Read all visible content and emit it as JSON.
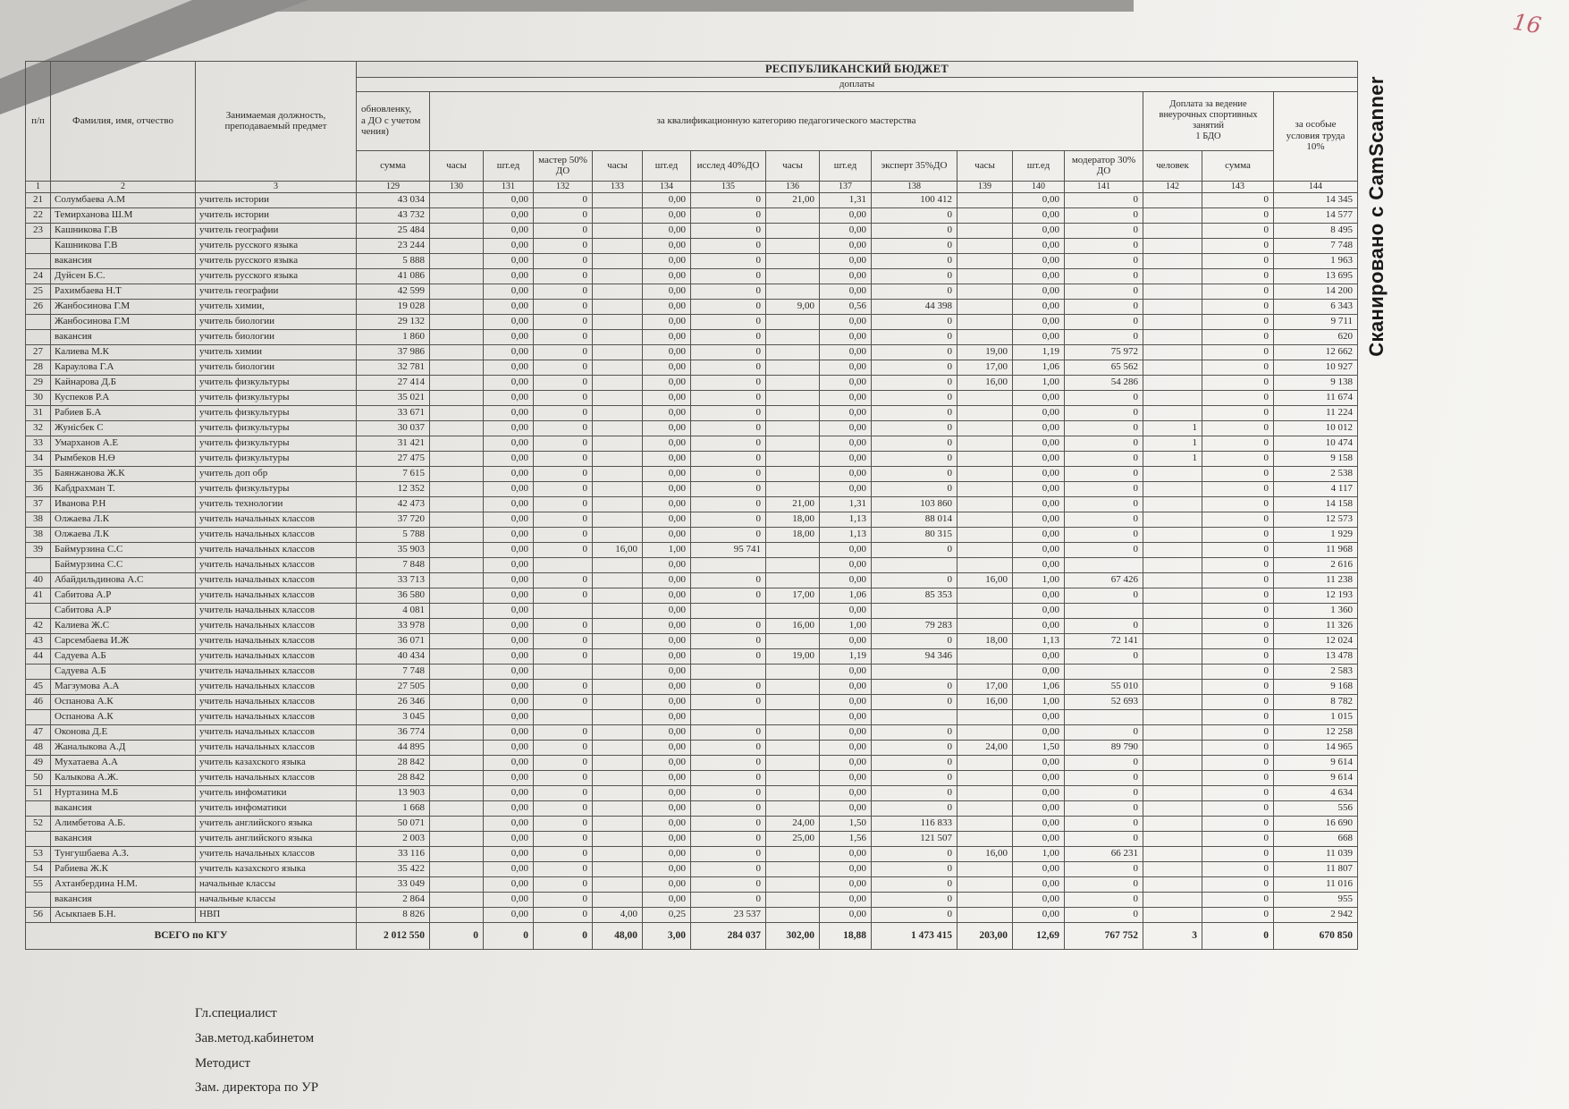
{
  "page": {
    "handwritten_number": "16",
    "scan_watermark": "Сканировано с CamScanner",
    "colors": {
      "handwriting": "#c2606e",
      "paper": "#edebe8",
      "ink": "#2a2927"
    }
  },
  "table": {
    "banner": "РЕСПУБЛИКАНСКИЙ БЮДЖЕТ",
    "banner_sub": "доплаты",
    "headers": {
      "num": "п/п",
      "name": "Фамилия, имя, отчество",
      "position": "Занимаемая должность, преподаваемый предмет",
      "col129_group": "обновленку,\nа ДО с учетом\nчения)",
      "qual_group": "за квалификационную категорию педагогического мастерства",
      "sport_group": "Доплата  за ведение\nвнеурочных спортивных\nзанятий\n1 БДО",
      "special_group": "за особые условия труда 10%",
      "sub": [
        "сумма",
        "часы",
        "шт.ед",
        "мастер 50% ДО",
        "часы",
        "шт.ед",
        "исслед 40%ДО",
        "часы",
        "шт.ед",
        "эксперт 35%ДО",
        "часы",
        "шт.ед",
        "модератор 30% ДО",
        "человек",
        "сумма"
      ],
      "numbers": [
        "1",
        "2",
        "3",
        "129",
        "130",
        "131",
        "132",
        "133",
        "134",
        "135",
        "136",
        "137",
        "138",
        "139",
        "140",
        "141",
        "142",
        "143",
        "144"
      ]
    },
    "rows": [
      [
        "21",
        "Солумбаева А.М",
        "учитель истории",
        "43 034",
        "",
        "0,00",
        "0",
        "",
        "0,00",
        "0",
        "21,00",
        "1,31",
        "100 412",
        "",
        "0,00",
        "0",
        "",
        "0",
        "14 345"
      ],
      [
        "22",
        "Темирханова Ш.М",
        "учитель истории",
        "43 732",
        "",
        "0,00",
        "0",
        "",
        "0,00",
        "0",
        "",
        "0,00",
        "0",
        "",
        "0,00",
        "0",
        "",
        "0",
        "14 577"
      ],
      [
        "23",
        "Кашникова Г.В",
        "учитель географии",
        "25 484",
        "",
        "0,00",
        "0",
        "",
        "0,00",
        "0",
        "",
        "0,00",
        "0",
        "",
        "0,00",
        "0",
        "",
        "0",
        "8 495"
      ],
      [
        "",
        "Кашникова Г.В",
        "учитель русского языка",
        "23 244",
        "",
        "0,00",
        "0",
        "",
        "0,00",
        "0",
        "",
        "0,00",
        "0",
        "",
        "0,00",
        "0",
        "",
        "0",
        "7 748"
      ],
      [
        "",
        "вакансия",
        "учитель русского языка",
        "5 888",
        "",
        "0,00",
        "0",
        "",
        "0,00",
        "0",
        "",
        "0,00",
        "0",
        "",
        "0,00",
        "0",
        "",
        "0",
        "1 963"
      ],
      [
        "24",
        "Дуйсен Б.С.",
        "учитель русского языка",
        "41 086",
        "",
        "0,00",
        "0",
        "",
        "0,00",
        "0",
        "",
        "0,00",
        "0",
        "",
        "0,00",
        "0",
        "",
        "0",
        "13 695"
      ],
      [
        "25",
        "Рахимбаева Н.Т",
        "учитель географии",
        "42 599",
        "",
        "0,00",
        "0",
        "",
        "0,00",
        "0",
        "",
        "0,00",
        "0",
        "",
        "0,00",
        "0",
        "",
        "0",
        "14 200"
      ],
      [
        "26",
        "Жанбосинова Г.М",
        "учитель химии,",
        "19 028",
        "",
        "0,00",
        "0",
        "",
        "0,00",
        "0",
        "9,00",
        "0,56",
        "44 398",
        "",
        "0,00",
        "0",
        "",
        "0",
        "6 343"
      ],
      [
        "",
        "Жанбосинова Г.М",
        "учитель  биологии",
        "29 132",
        "",
        "0,00",
        "0",
        "",
        "0,00",
        "0",
        "",
        "0,00",
        "0",
        "",
        "0,00",
        "0",
        "",
        "0",
        "9 711"
      ],
      [
        "",
        "вакансия",
        "учитель  биологии",
        "1 860",
        "",
        "0,00",
        "0",
        "",
        "0,00",
        "0",
        "",
        "0,00",
        "0",
        "",
        "0,00",
        "0",
        "",
        "0",
        "620"
      ],
      [
        "27",
        "Калиева М.К",
        "учитель химии",
        "37 986",
        "",
        "0,00",
        "0",
        "",
        "0,00",
        "0",
        "",
        "0,00",
        "0",
        "19,00",
        "1,19",
        "75 972",
        "",
        "0",
        "12 662"
      ],
      [
        "28",
        "Караулова Г.А",
        "учитель биологии",
        "32 781",
        "",
        "0,00",
        "0",
        "",
        "0,00",
        "0",
        "",
        "0,00",
        "0",
        "17,00",
        "1,06",
        "65 562",
        "",
        "0",
        "10 927"
      ],
      [
        "29",
        "Кайнарова Д.Б",
        "учитель физкультуры",
        "27 414",
        "",
        "0,00",
        "0",
        "",
        "0,00",
        "0",
        "",
        "0,00",
        "0",
        "16,00",
        "1,00",
        "54 286",
        "",
        "0",
        "9 138"
      ],
      [
        "30",
        "Куспеков Р.А",
        "учитель физкультуры",
        "35 021",
        "",
        "0,00",
        "0",
        "",
        "0,00",
        "0",
        "",
        "0,00",
        "0",
        "",
        "0,00",
        "0",
        "",
        "0",
        "11 674"
      ],
      [
        "31",
        "Рабиев Б.А",
        "учитель физкультуры",
        "33 671",
        "",
        "0,00",
        "0",
        "",
        "0,00",
        "0",
        "",
        "0,00",
        "0",
        "",
        "0,00",
        "0",
        "",
        "0",
        "11 224"
      ],
      [
        "32",
        "Жунісбек С",
        "учитель физкультуры",
        "30 037",
        "",
        "0,00",
        "0",
        "",
        "0,00",
        "0",
        "",
        "0,00",
        "0",
        "",
        "0,00",
        "0",
        "1",
        "0",
        "10 012"
      ],
      [
        "33",
        "Умарханов А.Е",
        "учитель физкультуры",
        "31 421",
        "",
        "0,00",
        "0",
        "",
        "0,00",
        "0",
        "",
        "0,00",
        "0",
        "",
        "0,00",
        "0",
        "1",
        "0",
        "10 474"
      ],
      [
        "34",
        "Рымбеков Н.Ө",
        "учитель физкультуры",
        "27 475",
        "",
        "0,00",
        "0",
        "",
        "0,00",
        "0",
        "",
        "0,00",
        "0",
        "",
        "0,00",
        "0",
        "1",
        "0",
        "9 158"
      ],
      [
        "35",
        "Баянжанова Ж.К",
        "учитель  доп обр",
        "7 615",
        "",
        "0,00",
        "0",
        "",
        "0,00",
        "0",
        "",
        "0,00",
        "0",
        "",
        "0,00",
        "0",
        "",
        "0",
        "2 538"
      ],
      [
        "36",
        "Кабдрахман Т.",
        "учитель физкультуры",
        "12 352",
        "",
        "0,00",
        "0",
        "",
        "0,00",
        "0",
        "",
        "0,00",
        "0",
        "",
        "0,00",
        "0",
        "",
        "0",
        "4 117"
      ],
      [
        "37",
        "Иванова Р.Н",
        "учитель технологии",
        "42 473",
        "",
        "0,00",
        "0",
        "",
        "0,00",
        "0",
        "21,00",
        "1,31",
        "103 860",
        "",
        "0,00",
        "0",
        "",
        "0",
        "14 158"
      ],
      [
        "38",
        "Олжаева Л.К",
        "учитель начальных классов",
        "37 720",
        "",
        "0,00",
        "0",
        "",
        "0,00",
        "0",
        "18,00",
        "1,13",
        "88 014",
        "",
        "0,00",
        "0",
        "",
        "0",
        "12 573"
      ],
      [
        "38",
        "Олжаева Л.К",
        "учитель начальных классов",
        "5 788",
        "",
        "0,00",
        "0",
        "",
        "0,00",
        "0",
        "18,00",
        "1,13",
        "80 315",
        "",
        "0,00",
        "0",
        "",
        "0",
        "1 929"
      ],
      [
        "39",
        "Баймурзина С.С",
        "учитель начальных классов",
        "35 903",
        "",
        "0,00",
        "0",
        "16,00",
        "1,00",
        "95 741",
        "",
        "0,00",
        "0",
        "",
        "0,00",
        "0",
        "",
        "0",
        "11 968"
      ],
      [
        "",
        "Баймурзина С.С",
        "учитель начальных классов",
        "7 848",
        "",
        "0,00",
        "",
        "",
        "0,00",
        "",
        "",
        "0,00",
        "",
        "",
        "0,00",
        "",
        "",
        "0",
        "2 616"
      ],
      [
        "40",
        "Абайдильдинова А.С",
        "учитель начальных классов",
        "33 713",
        "",
        "0,00",
        "0",
        "",
        "0,00",
        "0",
        "",
        "0,00",
        "0",
        "16,00",
        "1,00",
        "67 426",
        "",
        "0",
        "11 238"
      ],
      [
        "41",
        "Сабитова А.Р",
        "учитель начальных классов",
        "36 580",
        "",
        "0,00",
        "0",
        "",
        "0,00",
        "0",
        "17,00",
        "1,06",
        "85 353",
        "",
        "0,00",
        "0",
        "",
        "0",
        "12 193"
      ],
      [
        "",
        "Сабитова А.Р",
        "учитель начальных классов",
        "4 081",
        "",
        "0,00",
        "",
        "",
        "0,00",
        "",
        "",
        "0,00",
        "",
        "",
        "0,00",
        "",
        "",
        "0",
        "1 360"
      ],
      [
        "42",
        "Калиева Ж.С",
        "учитель начальных классов",
        "33 978",
        "",
        "0,00",
        "0",
        "",
        "0,00",
        "0",
        "16,00",
        "1,00",
        "79 283",
        "",
        "0,00",
        "0",
        "",
        "0",
        "11 326"
      ],
      [
        "43",
        "Сарсембаева И.Ж",
        "учитель начальных классов",
        "36 071",
        "",
        "0,00",
        "0",
        "",
        "0,00",
        "0",
        "",
        "0,00",
        "0",
        "18,00",
        "1,13",
        "72 141",
        "",
        "0",
        "12 024"
      ],
      [
        "44",
        "Садуева А.Б",
        "учитель начальных классов",
        "40 434",
        "",
        "0,00",
        "0",
        "",
        "0,00",
        "0",
        "19,00",
        "1,19",
        "94 346",
        "",
        "0,00",
        "0",
        "",
        "0",
        "13 478"
      ],
      [
        "",
        "Садуева А.Б",
        "учитель начальных классов",
        "7 748",
        "",
        "0,00",
        "",
        "",
        "0,00",
        "",
        "",
        "0,00",
        "",
        "",
        "0,00",
        "",
        "",
        "0",
        "2 583"
      ],
      [
        "45",
        "Магзумова А.А",
        "учитель начальных классов",
        "27 505",
        "",
        "0,00",
        "0",
        "",
        "0,00",
        "0",
        "",
        "0,00",
        "0",
        "17,00",
        "1,06",
        "55 010",
        "",
        "0",
        "9 168"
      ],
      [
        "46",
        "Оспанова А.К",
        "учитель начальных классов",
        "26 346",
        "",
        "0,00",
        "0",
        "",
        "0,00",
        "0",
        "",
        "0,00",
        "0",
        "16,00",
        "1,00",
        "52 693",
        "",
        "0",
        "8 782"
      ],
      [
        "",
        "Оспанова А.К",
        "учитель начальных классов",
        "3 045",
        "",
        "0,00",
        "",
        "",
        "0,00",
        "",
        "",
        "0,00",
        "",
        "",
        "0,00",
        "",
        "",
        "0",
        "1 015"
      ],
      [
        "47",
        "Оконова Д.Е",
        "учитель начальных классов",
        "36 774",
        "",
        "0,00",
        "0",
        "",
        "0,00",
        "0",
        "",
        "0,00",
        "0",
        "",
        "0,00",
        "0",
        "",
        "0",
        "12 258"
      ],
      [
        "48",
        "Жаналыкова А.Д",
        "учитель начальных классов",
        "44 895",
        "",
        "0,00",
        "0",
        "",
        "0,00",
        "0",
        "",
        "0,00",
        "0",
        "24,00",
        "1,50",
        "89 790",
        "",
        "0",
        "14 965"
      ],
      [
        "49",
        "Мухатаева А.А",
        "учитель казахского языка",
        "28 842",
        "",
        "0,00",
        "0",
        "",
        "0,00",
        "0",
        "",
        "0,00",
        "0",
        "",
        "0,00",
        "0",
        "",
        "0",
        "9 614"
      ],
      [
        "50",
        "Калыкова А.Ж.",
        "учитель начальных классов",
        "28 842",
        "",
        "0,00",
        "0",
        "",
        "0,00",
        "0",
        "",
        "0,00",
        "0",
        "",
        "0,00",
        "0",
        "",
        "0",
        "9 614"
      ],
      [
        "51",
        "Нуртазина М.Б",
        "учитель инфоматики",
        "13 903",
        "",
        "0,00",
        "0",
        "",
        "0,00",
        "0",
        "",
        "0,00",
        "0",
        "",
        "0,00",
        "0",
        "",
        "0",
        "4 634"
      ],
      [
        "",
        "вакансия",
        "учитель инфоматики",
        "1 668",
        "",
        "0,00",
        "0",
        "",
        "0,00",
        "0",
        "",
        "0,00",
        "0",
        "",
        "0,00",
        "0",
        "",
        "0",
        "556"
      ],
      [
        "52",
        "Алимбетова А.Б.",
        "учитель английского языка",
        "50 071",
        "",
        "0,00",
        "0",
        "",
        "0,00",
        "0",
        "24,00",
        "1,50",
        "116 833",
        "",
        "0,00",
        "0",
        "",
        "0",
        "16 690"
      ],
      [
        "",
        "вакансия",
        "учитель английского языка",
        "2 003",
        "",
        "0,00",
        "0",
        "",
        "0,00",
        "0",
        "25,00",
        "1,56",
        "121 507",
        "",
        "0,00",
        "0",
        "",
        "0",
        "668"
      ],
      [
        "53",
        "Тунгушбаева А.З.",
        "учитель начальных классов",
        "33 116",
        "",
        "0,00",
        "0",
        "",
        "0,00",
        "0",
        "",
        "0,00",
        "0",
        "16,00",
        "1,00",
        "66 231",
        "",
        "0",
        "11 039"
      ],
      [
        "54",
        "Рабиева Ж.К",
        "учитель казахского языка",
        "35 422",
        "",
        "0,00",
        "0",
        "",
        "0,00",
        "0",
        "",
        "0,00",
        "0",
        "",
        "0,00",
        "0",
        "",
        "0",
        "11 807"
      ],
      [
        "55",
        "Ахтанбердина Н.М.",
        "начальные классы",
        "33 049",
        "",
        "0,00",
        "0",
        "",
        "0,00",
        "0",
        "",
        "0,00",
        "0",
        "",
        "0,00",
        "0",
        "",
        "0",
        "11 016"
      ],
      [
        "",
        "вакансия",
        "начальные классы",
        "2 864",
        "",
        "0,00",
        "0",
        "",
        "0,00",
        "0",
        "",
        "0,00",
        "0",
        "",
        "0,00",
        "0",
        "",
        "0",
        "955"
      ],
      [
        "56",
        "Асыкпаев Б.Н.",
        "НВП",
        "8 826",
        "",
        "0,00",
        "0",
        "4,00",
        "0,25",
        "23 537",
        "",
        "0,00",
        "0",
        "",
        "0,00",
        "0",
        "",
        "0",
        "2 942"
      ]
    ],
    "total_row": {
      "label": "ВСЕГО по КГУ",
      "values": [
        "2 012 550",
        "0",
        "0",
        "0",
        "48,00",
        "3,00",
        "284 037",
        "302,00",
        "18,88",
        "1 473 415",
        "203,00",
        "12,69",
        "767 752",
        "3",
        "0",
        "670 850"
      ]
    },
    "footer_lines": [
      "Гл.специалист",
      "Зав.метод.кабинетом",
      "Методист",
      "Зам. директора по УР"
    ]
  }
}
